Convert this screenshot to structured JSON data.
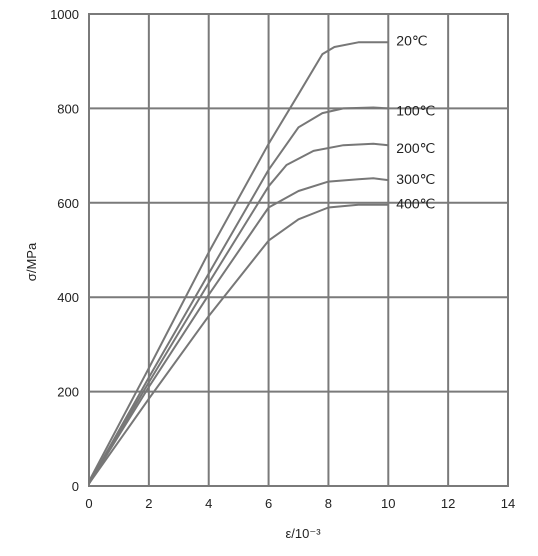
{
  "chart_data": {
    "type": "line",
    "title": "",
    "xlabel": "ε/10⁻³",
    "ylabel": "σ/MPa",
    "xlim": [
      0,
      14
    ],
    "ylim": [
      0,
      1000
    ],
    "x_ticks": [
      0,
      2,
      4,
      6,
      8,
      10,
      12,
      14
    ],
    "y_ticks": [
      0,
      200,
      400,
      600,
      800,
      1000
    ],
    "grid": true,
    "line_color": "#777777",
    "grid_color": "#7a7a7a",
    "series": [
      {
        "name": "20℃",
        "points": [
          [
            0,
            10
          ],
          [
            2,
            250
          ],
          [
            4,
            495
          ],
          [
            6,
            725
          ],
          [
            7,
            830
          ],
          [
            7.8,
            915
          ],
          [
            8.2,
            930
          ],
          [
            9,
            940
          ],
          [
            10,
            940
          ]
        ]
      },
      {
        "name": "100℃",
        "points": [
          [
            0,
            5
          ],
          [
            2,
            230
          ],
          [
            4,
            450
          ],
          [
            6,
            670
          ],
          [
            7,
            760
          ],
          [
            7.8,
            790
          ],
          [
            8.5,
            800
          ],
          [
            9.5,
            802
          ],
          [
            10,
            800
          ]
        ]
      },
      {
        "name": "200℃",
        "points": [
          [
            0,
            5
          ],
          [
            2,
            220
          ],
          [
            4,
            430
          ],
          [
            6,
            635
          ],
          [
            6.6,
            680
          ],
          [
            7.5,
            710
          ],
          [
            8.5,
            722
          ],
          [
            9.5,
            725
          ],
          [
            10,
            722
          ]
        ]
      },
      {
        "name": "300℃",
        "points": [
          [
            0,
            5
          ],
          [
            2,
            210
          ],
          [
            4,
            405
          ],
          [
            6,
            590
          ],
          [
            7,
            625
          ],
          [
            8,
            645
          ],
          [
            9,
            650
          ],
          [
            9.5,
            652
          ],
          [
            10,
            648
          ]
        ]
      },
      {
        "name": "400℃",
        "points": [
          [
            0,
            5
          ],
          [
            2,
            185
          ],
          [
            4,
            360
          ],
          [
            6,
            520
          ],
          [
            7,
            565
          ],
          [
            8,
            590
          ],
          [
            9,
            596
          ],
          [
            10,
            596
          ]
        ]
      }
    ]
  }
}
